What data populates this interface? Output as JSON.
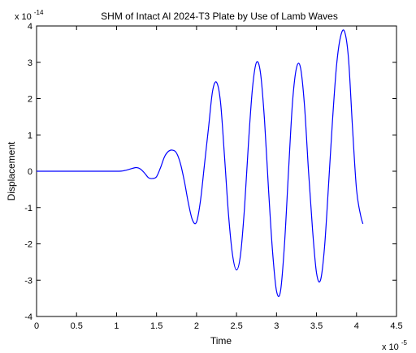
{
  "chart_data": {
    "type": "line",
    "title": "SHM of Intact Al 2024-T3 Plate by Use of Lamb Waves",
    "xlabel": "Time",
    "ylabel": "Displacement",
    "x_exponent_label": "x 10",
    "x_exponent": "-5",
    "y_exponent_label": "x 10",
    "y_exponent": "-14",
    "xlim": [
      0,
      4.5
    ],
    "ylim": [
      -4,
      4
    ],
    "xticks": [
      "0",
      "0.5",
      "1",
      "1.5",
      "2",
      "2.5",
      "3",
      "3.5",
      "4",
      "4.5"
    ],
    "yticks": [
      "-4",
      "-3",
      "-2",
      "-1",
      "0",
      "1",
      "2",
      "3",
      "4"
    ],
    "grid": false,
    "line_color": "#0000ff",
    "series": [
      {
        "x": [
          0,
          0.5,
          1.0,
          1.1,
          1.2,
          1.25,
          1.3,
          1.35,
          1.4,
          1.45,
          1.5,
          1.55,
          1.6,
          1.65,
          1.7,
          1.75,
          1.8,
          1.85,
          1.9,
          1.95,
          2.0,
          2.05,
          2.1,
          2.15,
          2.2,
          2.25,
          2.3,
          2.35,
          2.4,
          2.45,
          2.5,
          2.55,
          2.6,
          2.65,
          2.7,
          2.75,
          2.8,
          2.85,
          2.9,
          2.95,
          3.0,
          3.05,
          3.1,
          3.15,
          3.2,
          3.25,
          3.3,
          3.35,
          3.4,
          3.45,
          3.5,
          3.55,
          3.6,
          3.65,
          3.7,
          3.75,
          3.8,
          3.85,
          3.9,
          3.95,
          4.0,
          4.05,
          4.08
        ],
        "y": [
          0,
          0,
          0,
          0.02,
          0.08,
          0.1,
          0.06,
          -0.05,
          -0.18,
          -0.2,
          -0.15,
          0.1,
          0.4,
          0.55,
          0.58,
          0.5,
          0.2,
          -0.3,
          -0.9,
          -1.35,
          -1.4,
          -0.8,
          0.2,
          1.2,
          2.2,
          2.45,
          1.9,
          0.4,
          -1.2,
          -2.3,
          -2.72,
          -2.3,
          -1.0,
          0.8,
          2.3,
          3.0,
          2.7,
          1.4,
          -0.5,
          -2.2,
          -3.3,
          -3.3,
          -2.0,
          0,
          1.9,
          2.85,
          2.85,
          1.8,
          0,
          -1.6,
          -2.8,
          -3.0,
          -2.1,
          -0.4,
          1.4,
          2.9,
          3.7,
          3.85,
          3.1,
          1.2,
          -0.5,
          -1.2,
          -1.45
        ]
      }
    ]
  }
}
